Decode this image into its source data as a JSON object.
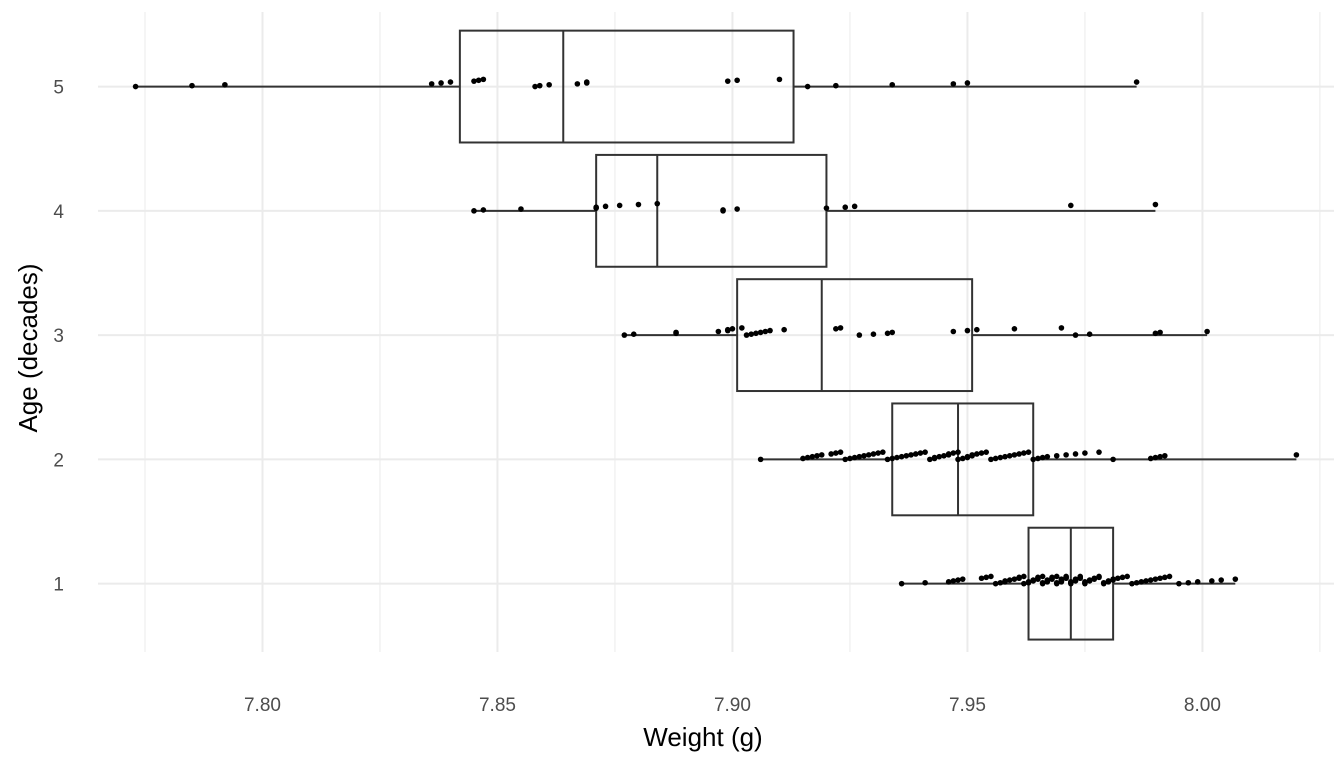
{
  "chart_data": {
    "type": "boxplot",
    "orientation": "horizontal",
    "xlabel": "Weight (g)",
    "ylabel": "Age (decades)",
    "xlim": [
      7.765,
      8.028
    ],
    "ylim": [
      0.45,
      5.6
    ],
    "x_ticks": [
      "7.80",
      "7.85",
      "7.90",
      "7.95",
      "8.00"
    ],
    "y_ticks": [
      "1",
      "2",
      "3",
      "4",
      "5"
    ],
    "grid": true,
    "legend": "none",
    "colors": {
      "box": "#333333",
      "points": "#000000",
      "grid": "#ebebeb"
    },
    "groups": [
      {
        "category": "1",
        "whisker_low": 7.936,
        "q1": 7.963,
        "median": 7.972,
        "q3": 7.981,
        "whisker_high": 8.007,
        "points": [
          7.936,
          7.941,
          7.946,
          7.947,
          7.948,
          7.949,
          7.953,
          7.954,
          7.955,
          7.956,
          7.957,
          7.958,
          7.958,
          7.959,
          7.96,
          7.961,
          7.961,
          7.962,
          7.962,
          7.963,
          7.963,
          7.964,
          7.964,
          7.965,
          7.965,
          7.965,
          7.966,
          7.966,
          7.966,
          7.967,
          7.967,
          7.967,
          7.968,
          7.968,
          7.968,
          7.969,
          7.969,
          7.969,
          7.97,
          7.97,
          7.97,
          7.97,
          7.971,
          7.971,
          7.971,
          7.972,
          7.972,
          7.972,
          7.973,
          7.973,
          7.973,
          7.974,
          7.974,
          7.974,
          7.975,
          7.975,
          7.975,
          7.976,
          7.976,
          7.977,
          7.977,
          7.978,
          7.978,
          7.979,
          7.979,
          7.98,
          7.98,
          7.981,
          7.981,
          7.982,
          7.983,
          7.984,
          7.985,
          7.986,
          7.987,
          7.988,
          7.989,
          7.99,
          7.991,
          7.992,
          7.993,
          7.995,
          7.997,
          7.999,
          8.002,
          8.004,
          8.007
        ]
      },
      {
        "category": "2",
        "whisker_low": 7.906,
        "q1": 7.934,
        "median": 7.948,
        "q3": 7.964,
        "whisker_high": 8.02,
        "points": [
          7.906,
          7.915,
          7.916,
          7.917,
          7.918,
          7.919,
          7.921,
          7.922,
          7.923,
          7.924,
          7.925,
          7.926,
          7.927,
          7.928,
          7.929,
          7.93,
          7.931,
          7.932,
          7.933,
          7.934,
          7.935,
          7.936,
          7.937,
          7.938,
          7.939,
          7.94,
          7.941,
          7.942,
          7.943,
          7.943,
          7.944,
          7.945,
          7.946,
          7.946,
          7.947,
          7.948,
          7.948,
          7.949,
          7.95,
          7.95,
          7.951,
          7.951,
          7.952,
          7.953,
          7.954,
          7.955,
          7.956,
          7.957,
          7.958,
          7.959,
          7.96,
          7.961,
          7.962,
          7.963,
          7.964,
          7.965,
          7.966,
          7.967,
          7.969,
          7.971,
          7.973,
          7.975,
          7.978,
          7.981,
          7.989,
          7.99,
          7.991,
          7.992,
          8.02
        ]
      },
      {
        "category": "3",
        "whisker_low": 7.877,
        "q1": 7.901,
        "median": 7.919,
        "q3": 7.951,
        "whisker_high": 8.001,
        "points": [
          7.877,
          7.879,
          7.888,
          7.888,
          7.897,
          7.899,
          7.899,
          7.9,
          7.902,
          7.903,
          7.904,
          7.905,
          7.906,
          7.907,
          7.908,
          7.911,
          7.922,
          7.923,
          7.927,
          7.93,
          7.933,
          7.934,
          7.947,
          7.95,
          7.952,
          7.96,
          7.97,
          7.973,
          7.976,
          7.99,
          7.991,
          8.001
        ]
      },
      {
        "category": "4",
        "whisker_low": 7.845,
        "q1": 7.871,
        "median": 7.884,
        "q3": 7.92,
        "whisker_high": 7.99,
        "points": [
          7.845,
          7.847,
          7.855,
          7.871,
          7.871,
          7.873,
          7.876,
          7.88,
          7.884,
          7.898,
          7.898,
          7.901,
          7.92,
          7.924,
          7.926,
          7.972,
          7.99
        ]
      },
      {
        "category": "5",
        "whisker_low": 7.773,
        "q1": 7.842,
        "median": 7.864,
        "q3": 7.913,
        "whisker_high": 7.986,
        "points": [
          7.773,
          7.785,
          7.792,
          7.836,
          7.838,
          7.84,
          7.845,
          7.846,
          7.847,
          7.858,
          7.859,
          7.861,
          7.867,
          7.869,
          7.869,
          7.899,
          7.901,
          7.91,
          7.916,
          7.922,
          7.934,
          7.947,
          7.95,
          7.986
        ]
      }
    ]
  }
}
